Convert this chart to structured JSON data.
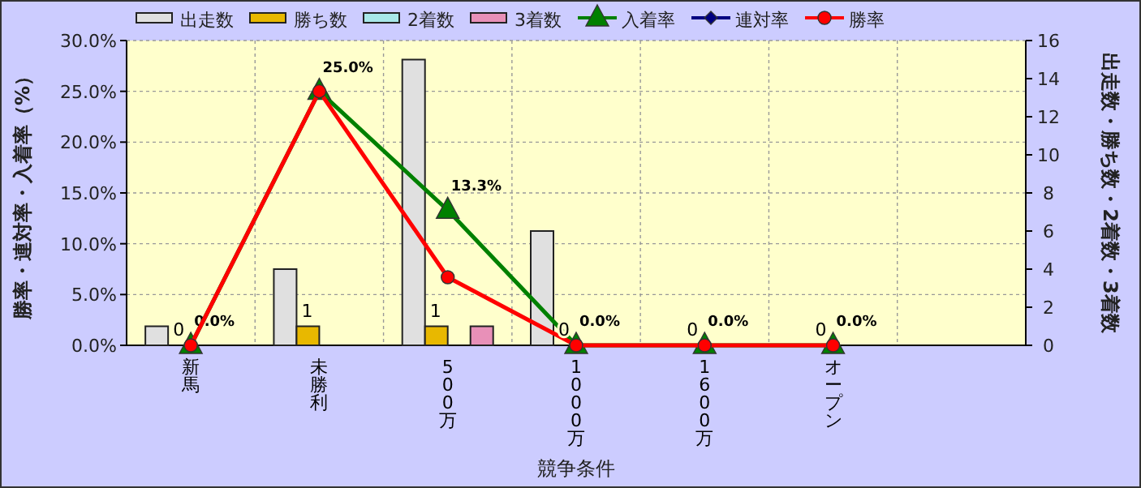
{
  "chart_data": {
    "type": "bar",
    "categories": [
      "新馬",
      "未勝利",
      "500万",
      "1000万",
      "1600万",
      "オープン",
      null
    ],
    "series": [
      {
        "name": "出走数",
        "axis": "y2",
        "color": "#e0e0e0",
        "values": [
          1,
          4,
          15,
          6,
          0,
          0,
          null
        ]
      },
      {
        "name": "勝ち数",
        "axis": "y2",
        "color": "#e8b800",
        "values": [
          0,
          1,
          1,
          0,
          0,
          0,
          null
        ],
        "value_labels": [
          "0",
          "1",
          "1",
          "0",
          "0",
          "0",
          null
        ]
      },
      {
        "name": "2着数",
        "axis": "y2",
        "color": "#a8e8e8",
        "values": [
          0,
          0,
          0,
          0,
          0,
          0,
          null
        ]
      },
      {
        "name": "3着数",
        "axis": "y2",
        "color": "#e890b8",
        "values": [
          0,
          0,
          1,
          0,
          0,
          0,
          null
        ]
      },
      {
        "name": "入着率",
        "type": "line",
        "marker": "triangle",
        "color": "#008000",
        "values": [
          0,
          25,
          13.3,
          0,
          0,
          0,
          null
        ],
        "value_labels": [
          "0.0%",
          null,
          "13.3%",
          "0.0%",
          "0.0%",
          "0.0%",
          null
        ]
      },
      {
        "name": "連対率",
        "type": "line",
        "marker": "diamond",
        "color": "#000080",
        "values": [
          null,
          null,
          null,
          null,
          null,
          null,
          null
        ]
      },
      {
        "name": "勝率",
        "type": "line",
        "marker": "circle",
        "color": "#ff0000",
        "values": [
          0,
          25,
          6.7,
          0,
          0,
          0,
          null
        ],
        "value_labels": [
          null,
          "25.0%",
          null,
          null,
          null,
          null,
          null
        ]
      }
    ],
    "xlabel": "競争条件",
    "ylabel": "勝率・連対率・入着率（%）",
    "y2label": "出走数・勝ち数・2着数・3着数",
    "ylim": [
      0,
      30
    ],
    "yticks": [
      {
        "value": 0,
        "label": "0.0%"
      },
      {
        "value": 5,
        "label": "5.0%"
      },
      {
        "value": 10,
        "label": "10.0%"
      },
      {
        "value": 15,
        "label": "15.0%"
      },
      {
        "value": 20,
        "label": "20.0%"
      },
      {
        "value": 25,
        "label": "25.0%"
      },
      {
        "value": 30,
        "label": "30.0%"
      }
    ],
    "y2lim": [
      0,
      16
    ],
    "y2ticks": [
      0,
      2,
      4,
      6,
      8,
      10,
      12,
      14,
      16
    ],
    "grid": true,
    "legend": "top"
  }
}
